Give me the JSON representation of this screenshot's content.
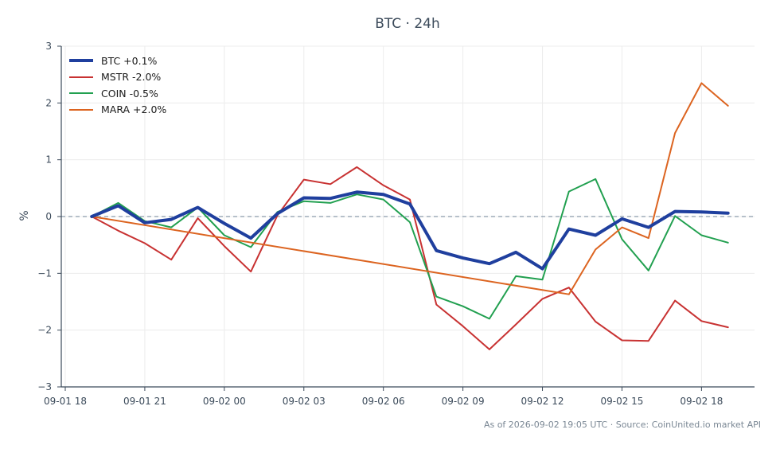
{
  "chart_data": {
    "type": "line",
    "title": "BTC · 24h",
    "ylabel": "%",
    "xlabel": "",
    "ylim": [
      -3,
      3
    ],
    "yticks": [
      3,
      2,
      1,
      0,
      -1,
      -2,
      -3
    ],
    "ytick_labels": [
      "3",
      "2",
      "1",
      "0",
      "−1",
      "−2",
      "−3"
    ],
    "xticks": [
      {
        "x": 0,
        "label": "09-01 18"
      },
      {
        "x": 3,
        "label": "09-01 21"
      },
      {
        "x": 6,
        "label": "09-02 00"
      },
      {
        "x": 9,
        "label": "09-02 03"
      },
      {
        "x": 12,
        "label": "09-02 06"
      },
      {
        "x": 15,
        "label": "09-02 09"
      },
      {
        "x": 18,
        "label": "09-02 12"
      },
      {
        "x": 21,
        "label": "09-02 15"
      },
      {
        "x": 24,
        "label": "09-02 18"
      }
    ],
    "xlim": [
      -0.15,
      26.0
    ],
    "grid": true,
    "zero_line": true,
    "legend_position": "top-left",
    "series": [
      {
        "name": "BTC +0.1%",
        "color": "#1f3f9e",
        "width": 4,
        "x": [
          1,
          2,
          3,
          4,
          5,
          6,
          7,
          8,
          9,
          10,
          11,
          12,
          13,
          14,
          15,
          16,
          17,
          18,
          19,
          20,
          21,
          22,
          23,
          24,
          25
        ],
        "values": [
          0,
          0.19,
          -0.11,
          -0.05,
          0.16,
          -0.12,
          -0.38,
          0.05,
          0.33,
          0.32,
          0.43,
          0.39,
          0.22,
          -0.6,
          -0.73,
          -0.83,
          -0.63,
          -0.92,
          -0.22,
          -0.33,
          -0.04,
          -0.19,
          0.09,
          0.08,
          0.06
        ]
      },
      {
        "name": "MSTR -2.0%",
        "color": "#c83232",
        "width": 2,
        "x": [
          1,
          2,
          3,
          4,
          5,
          6,
          7,
          8,
          9,
          10,
          11,
          12,
          13,
          14,
          15,
          16,
          17,
          18,
          19,
          20,
          21,
          22,
          23,
          24,
          25
        ],
        "values": [
          0,
          -0.25,
          -0.47,
          -0.76,
          -0.03,
          -0.52,
          -0.97,
          0.02,
          0.65,
          0.57,
          0.87,
          0.55,
          0.3,
          -1.55,
          -1.93,
          -2.34,
          -1.9,
          -1.45,
          -1.25,
          -1.85,
          -2.18,
          -2.19,
          -1.48,
          -1.84,
          -1.95
        ]
      },
      {
        "name": "COIN -0.5%",
        "color": "#22a050",
        "width": 2,
        "x": [
          1,
          2,
          3,
          4,
          5,
          6,
          7,
          8,
          9,
          10,
          11,
          12,
          13,
          14,
          15,
          16,
          17,
          18,
          19,
          20,
          21,
          22,
          23,
          24,
          25
        ],
        "values": [
          0,
          0.24,
          -0.08,
          -0.19,
          0.16,
          -0.33,
          -0.54,
          0.08,
          0.27,
          0.24,
          0.39,
          0.3,
          -0.1,
          -1.41,
          -1.58,
          -1.8,
          -1.05,
          -1.11,
          0.44,
          0.66,
          -0.4,
          -0.95,
          0.01,
          -0.33,
          -0.46
        ]
      },
      {
        "name": "MARA +2.0%",
        "color": "#dc6420",
        "width": 2,
        "x": [
          1,
          19,
          20,
          21,
          22,
          23,
          24,
          25
        ],
        "values": [
          0,
          -1.37,
          -0.58,
          -0.19,
          -0.38,
          1.47,
          2.35,
          1.95
        ]
      }
    ]
  },
  "footer": "As of 2026-09-02 19:05 UTC · Source: CoinUnited.io market API"
}
